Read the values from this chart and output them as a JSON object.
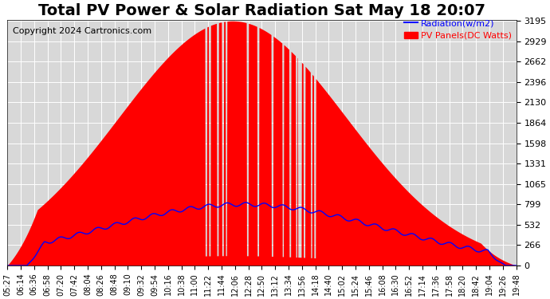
{
  "title": "Total PV Power & Solar Radiation Sat May 18 20:07",
  "copyright": "Copyright 2024 Cartronics.com",
  "legend_radiation": "Radiation(w/m2)",
  "legend_pv": "PV Panels(DC Watts)",
  "yticks": [
    0.0,
    266.3,
    532.5,
    798.8,
    1065.0,
    1331.3,
    1597.5,
    1863.8,
    2130.0,
    2396.3,
    2662.5,
    2928.8,
    3195.0
  ],
  "ymax": 3195.0,
  "ymin": 0.0,
  "background_color": "#ffffff",
  "plot_bg_color": "#d8d8d8",
  "grid_color": "#ffffff",
  "pv_color": "#ff0000",
  "radiation_color": "#0000ff",
  "title_fontsize": 14,
  "copyright_fontsize": 8,
  "tick_fontsize": 8,
  "xtick_labels": [
    "05:27",
    "06:14",
    "06:36",
    "06:58",
    "07:20",
    "07:42",
    "08:04",
    "08:26",
    "08:48",
    "09:10",
    "09:32",
    "09:54",
    "10:16",
    "10:38",
    "11:00",
    "11:22",
    "11:44",
    "12:06",
    "12:28",
    "12:50",
    "13:12",
    "13:34",
    "13:56",
    "14:18",
    "14:40",
    "15:02",
    "15:24",
    "15:46",
    "16:08",
    "16:30",
    "16:52",
    "17:14",
    "17:36",
    "17:58",
    "18:20",
    "18:42",
    "19:04",
    "19:26",
    "19:48"
  ]
}
